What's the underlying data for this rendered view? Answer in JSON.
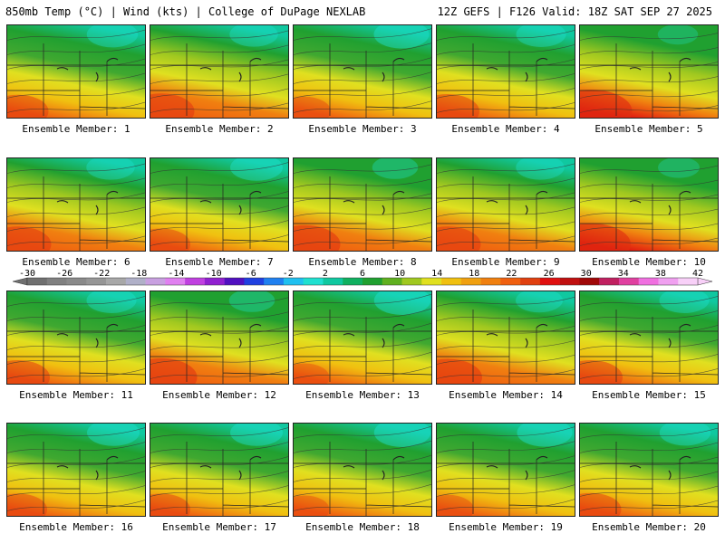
{
  "header": {
    "left": "850mb Temp (°C) | Wind (kts) | College of DuPage NEXLAB",
    "right": "12Z GEFS | F126 Valid: 18Z SAT SEP 27 2025"
  },
  "members": [
    {
      "label": "Ensemble Member: 1",
      "warmth": 0.45
    },
    {
      "label": "Ensemble Member: 2",
      "warmth": 0.55
    },
    {
      "label": "Ensemble Member: 3",
      "warmth": 0.3
    },
    {
      "label": "Ensemble Member: 4",
      "warmth": 0.5
    },
    {
      "label": "Ensemble Member: 5",
      "warmth": 0.85
    },
    {
      "label": "Ensemble Member: 6",
      "warmth": 0.55
    },
    {
      "label": "Ensemble Member: 7",
      "warmth": 0.4
    },
    {
      "label": "Ensemble Member: 8",
      "warmth": 0.65
    },
    {
      "label": "Ensemble Member: 9",
      "warmth": 0.55
    },
    {
      "label": "Ensemble Member: 10",
      "warmth": 0.8
    },
    {
      "label": "Ensemble Member: 11",
      "warmth": 0.5
    },
    {
      "label": "Ensemble Member: 12",
      "warmth": 0.65
    },
    {
      "label": "Ensemble Member: 13",
      "warmth": 0.25
    },
    {
      "label": "Ensemble Member: 14",
      "warmth": 0.6
    },
    {
      "label": "Ensemble Member: 15",
      "warmth": 0.5
    },
    {
      "label": "Ensemble Member: 16",
      "warmth": 0.4
    },
    {
      "label": "Ensemble Member: 17",
      "warmth": 0.4
    },
    {
      "label": "Ensemble Member: 18",
      "warmth": 0.25
    },
    {
      "label": "Ensemble Member: 19",
      "warmth": 0.3
    },
    {
      "label": "Ensemble Member: 20",
      "warmth": 0.45
    }
  ],
  "colorbar": {
    "labels": [
      "-30",
      "-26",
      "-22",
      "-18",
      "-14",
      "-10",
      "-6",
      "-2",
      "2",
      "6",
      "10",
      "14",
      "18",
      "22",
      "26",
      "30",
      "34",
      "38",
      "42"
    ],
    "colors": [
      "#707070",
      "#808080",
      "#8a8a8a",
      "#969696",
      "#a8a8a8",
      "#b0b0c8",
      "#c8a0e0",
      "#e080f0",
      "#c040e0",
      "#9020d0",
      "#5010c0",
      "#2040e0",
      "#2080f0",
      "#20c0f0",
      "#20e0d0",
      "#10c8a0",
      "#10b060",
      "#20a030",
      "#60b020",
      "#a0c820",
      "#e0e020",
      "#f0c010",
      "#f0a010",
      "#f08010",
      "#f06010",
      "#e04010",
      "#e01010",
      "#c01010",
      "#a00808",
      "#c02060",
      "#e040a0",
      "#f070e0",
      "#f0a0f0",
      "#f8d0f8"
    ]
  }
}
